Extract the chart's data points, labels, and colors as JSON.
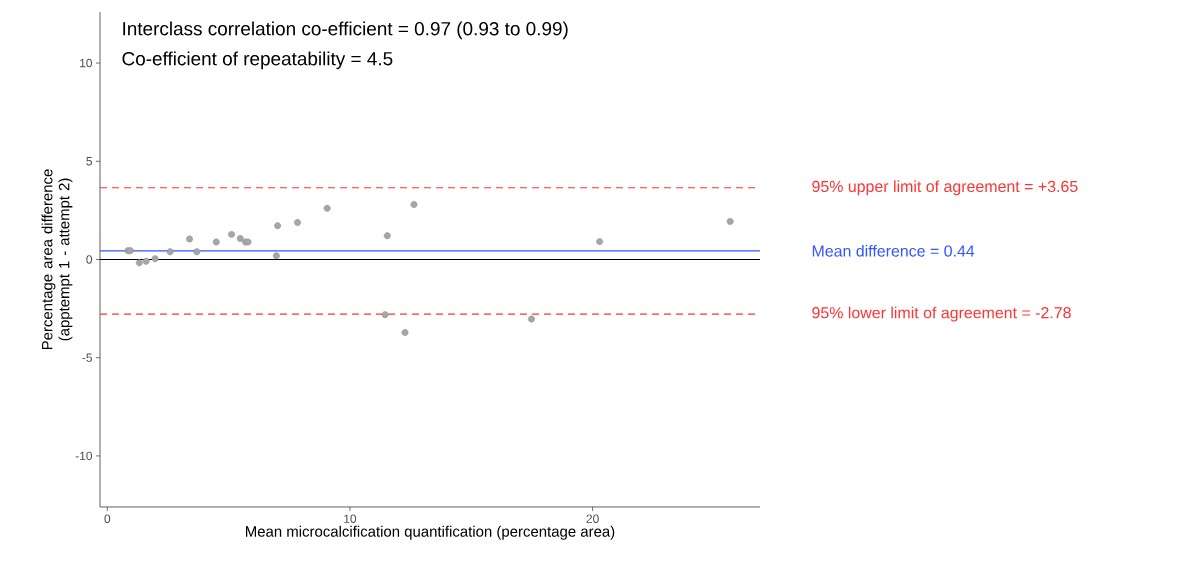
{
  "chart_data": {
    "type": "scatter",
    "xlabel": "Mean microcalcification quantification (percentage area)",
    "ylabel": "Percentage area difference (apptempt 1 - attempt 2)",
    "annotations": [
      "Interclass correlation co-efficient = 0.97 (0.93 to 0.99)",
      "Co-efficient of repeatability = 4.5"
    ],
    "x": [
      0.85,
      0.95,
      1.32,
      1.6,
      1.97,
      2.59,
      3.39,
      3.69,
      4.49,
      5.12,
      5.48,
      5.7,
      5.8,
      6.97,
      7.02,
      7.84,
      9.06,
      11.54,
      12.64,
      11.45,
      12.27,
      17.48,
      20.29,
      25.67
    ],
    "values": [
      0.45,
      0.45,
      -0.17,
      -0.09,
      0.04,
      0.39,
      1.04,
      0.39,
      0.89,
      1.28,
      1.07,
      0.89,
      0.89,
      0.19,
      1.72,
      1.88,
      2.61,
      1.21,
      2.8,
      -2.81,
      -3.72,
      -3.03,
      0.91,
      1.94
    ],
    "color": "#a6a6a6",
    "marker": "circle",
    "xlim": [
      -0.3,
      26.9
    ],
    "ylim": [
      -12.6,
      12.6
    ],
    "xticks": [
      0,
      10,
      20
    ],
    "yticks": [
      -10,
      -5,
      0,
      5,
      10
    ],
    "grid": false,
    "ref_lines": [
      {
        "axis": "y",
        "value": 3.65,
        "label": "95% upper limit of agreement = +3.65",
        "color": "#ff3333",
        "line_style": "dashed"
      },
      {
        "axis": "y",
        "value": 0.44,
        "label": "Mean difference = 0.44",
        "color": "#3355ff",
        "line_style": "solid"
      },
      {
        "axis": "y",
        "value": 0,
        "color": "#000000",
        "line_style": "solid"
      },
      {
        "axis": "y",
        "value": -2.78,
        "label": "95% lower limit of agreement = -2.78",
        "color": "#ff3333",
        "line_style": "dashed"
      }
    ]
  }
}
